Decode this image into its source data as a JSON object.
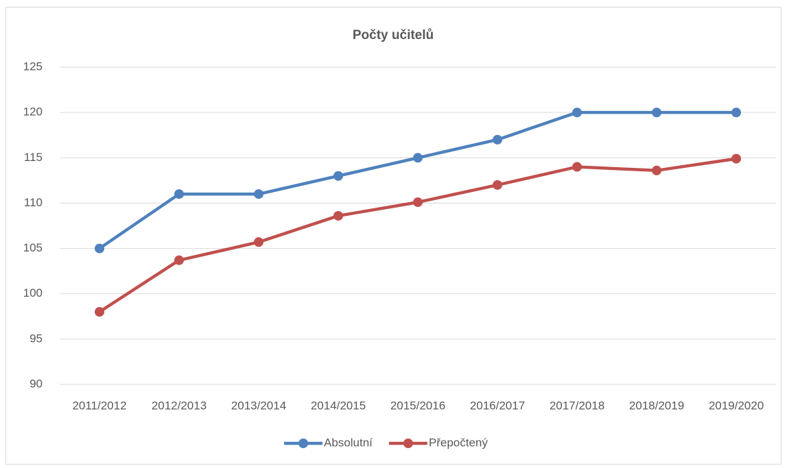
{
  "chart_data": {
    "type": "line",
    "title": "Počty učitelů",
    "categories": [
      "2011/2012",
      "2012/2013",
      "2013/2014",
      "2014/2015",
      "2015/2016",
      "2016/2017",
      "2017/2018",
      "2018/2019",
      "2019/2020"
    ],
    "series": [
      {
        "name": "Absolutní",
        "color": "#4f81bd",
        "values": [
          105,
          111,
          111,
          113,
          115,
          117,
          120,
          120,
          120
        ]
      },
      {
        "name": "Přepočtený",
        "color": "#c0504d",
        "values": [
          98,
          103.7,
          105.7,
          108.6,
          110.1,
          112,
          114,
          113.6,
          114.9
        ]
      }
    ],
    "ylim": [
      90,
      125
    ],
    "yticks": [
      90,
      95,
      100,
      105,
      110,
      115,
      120,
      125
    ],
    "grid": true,
    "legend": "bottom"
  }
}
